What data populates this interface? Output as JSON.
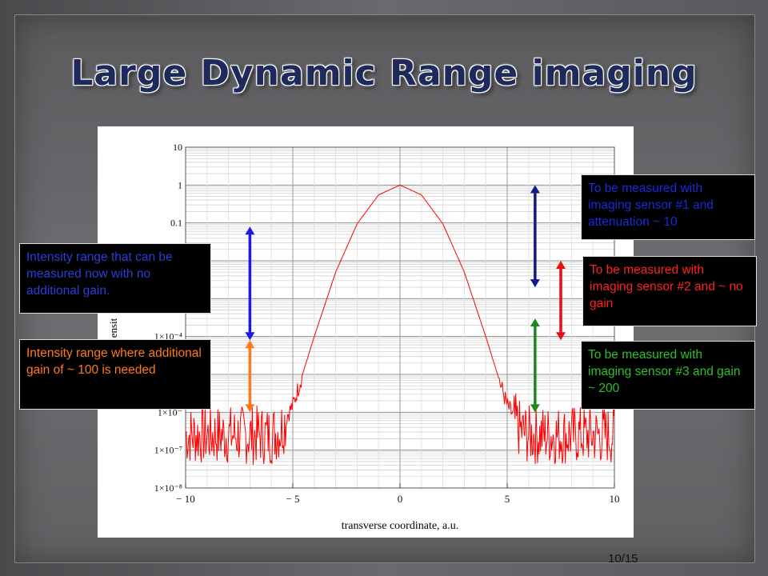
{
  "slide": {
    "title": "Large Dynamic Range imaging",
    "page_number": "10/15"
  },
  "annotations": {
    "left_top": "Intensity range that can be measured now with no additional gain.",
    "left_bottom": "Intensity range where additional gain of ~ 100 is needed",
    "right_1": "To be measured with imaging sensor #1 and attenuation ~ 10",
    "right_2": "To be measured with imaging sensor #2 and ~ no gain",
    "right_3": "To be measured with imaging sensor #3 and gain ~ 200"
  },
  "colors": {
    "curve": "#ff0000",
    "arrow_blue": "#1a1ae6",
    "arrow_orange": "#ff7a1a",
    "arrow_navy": "#101a8a",
    "arrow_red": "#e81010",
    "arrow_green": "#1a8a1a"
  },
  "chart_data": {
    "type": "line",
    "scale_y": "log",
    "xlabel": "transverse coordinate, a.u.",
    "ylabel": "ensit",
    "xlim": [
      -10,
      10
    ],
    "ylim": [
      1e-08,
      10
    ],
    "x_ticks": [
      {
        "value": -10,
        "label": "− 10"
      },
      {
        "value": -5,
        "label": "− 5"
      },
      {
        "value": 0,
        "label": "0"
      },
      {
        "value": 5,
        "label": "5"
      },
      {
        "value": 10,
        "label": "10"
      }
    ],
    "y_ticks": [
      {
        "value": 10,
        "label": "10"
      },
      {
        "value": 1,
        "label": "1"
      },
      {
        "value": 0.1,
        "label": "0.1"
      },
      {
        "value": 0.0001,
        "label": "1×10⁻⁴"
      },
      {
        "value": 1e-06,
        "label": "1×10⁻"
      },
      {
        "value": 1e-07,
        "label": "1×10⁻⁷"
      },
      {
        "value": 1e-08,
        "label": "1×10⁻⁸"
      }
    ],
    "grid": true,
    "series": [
      {
        "x": [
          -10,
          -9,
          -8,
          -7,
          -6,
          -5.6,
          -5,
          -4,
          -3,
          -2,
          -1,
          0,
          1,
          2,
          3,
          4,
          5,
          5.6,
          6,
          7,
          8,
          9,
          10
        ],
        "y": [
          3e-07,
          3e-07,
          3e-07,
          3e-07,
          3e-07,
          4e-07,
          1.5e-06,
          0.0001,
          0.005,
          0.095,
          0.55,
          1,
          0.55,
          0.095,
          0.005,
          0.0001,
          1.5e-06,
          4e-07,
          3e-07,
          3e-07,
          3e-07,
          3e-07,
          3e-07
        ]
      }
    ],
    "arrows": [
      {
        "x": -7,
        "y_from": 0.08,
        "y_to": 8e-05,
        "color": "arrow_blue"
      },
      {
        "x": -7,
        "y_from": 8e-05,
        "y_to": 1e-06,
        "color": "arrow_orange"
      },
      {
        "x": 6.3,
        "y_from": 1,
        "y_to": 0.002,
        "color": "arrow_navy"
      },
      {
        "x": 7.5,
        "y_from": 0.01,
        "y_to": 8e-05,
        "color": "arrow_red"
      },
      {
        "x": 6.3,
        "y_from": 0.0003,
        "y_to": 1e-06,
        "color": "arrow_green"
      }
    ]
  }
}
